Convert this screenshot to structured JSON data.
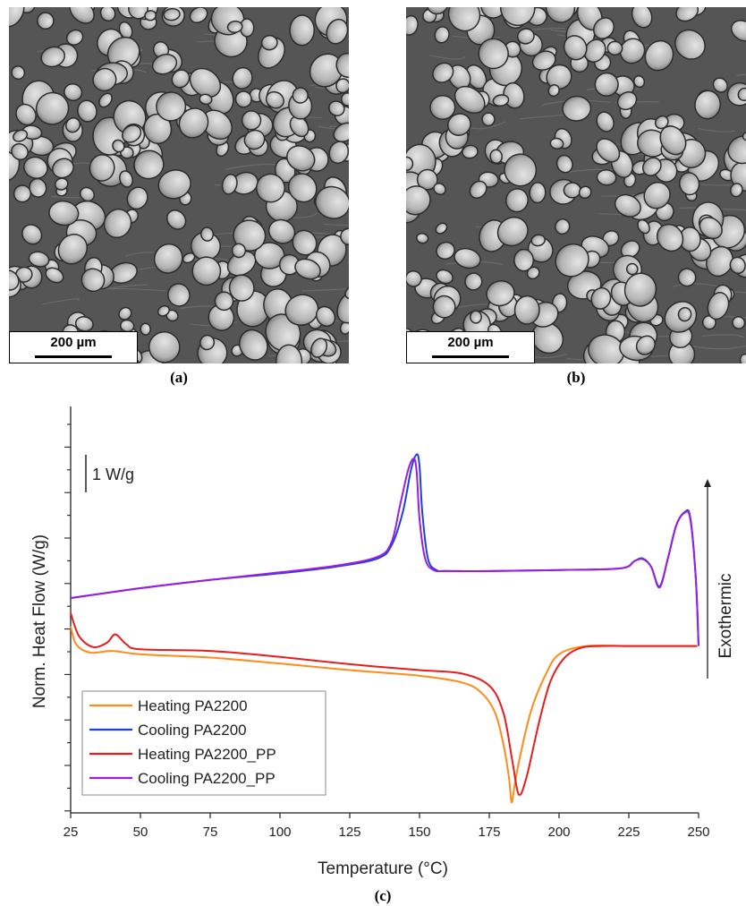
{
  "panels": {
    "a": {
      "label": "(a)",
      "scale_label": "200 µm"
    },
    "b": {
      "label": "(b)",
      "scale_label": "200 µm"
    },
    "c": {
      "label": "(c)"
    }
  },
  "chart_data": {
    "type": "line",
    "title": "",
    "xlabel": "Temperature (°C)",
    "ylabel": "Norm. Heat Flow (W/g)",
    "xlim": [
      25,
      250
    ],
    "xticks": [
      25,
      50,
      75,
      100,
      125,
      150,
      175,
      200,
      225,
      250
    ],
    "y_units": "W/g (relative, arbitrary offset)",
    "scale_annotation": "1 W/g",
    "direction_annotation": "Exothermic",
    "legend_position": "bottom-left",
    "grid": false,
    "series": [
      {
        "name": "Heating PA2200",
        "color": "#ff8c1a",
        "x": [
          25,
          27,
          32,
          40,
          50,
          75,
          100,
          125,
          150,
          165,
          172,
          177,
          180,
          182,
          183,
          184,
          186,
          190,
          195,
          200,
          210,
          225,
          245,
          249.5
        ],
        "y": [
          0.55,
          0.0,
          -0.25,
          -0.2,
          -0.3,
          -0.4,
          -0.58,
          -0.78,
          -0.95,
          -1.15,
          -1.45,
          -2.05,
          -3.0,
          -4.0,
          -4.78,
          -4.3,
          -3.4,
          -2.0,
          -0.95,
          -0.3,
          -0.05,
          -0.05,
          -0.05,
          -0.05
        ]
      },
      {
        "name": "Cooling PA2200",
        "color": "#1f3fe0",
        "x": [
          25,
          50,
          75,
          100,
          120,
          135,
          140,
          144,
          147,
          149,
          150,
          151,
          153,
          156,
          160,
          175,
          200,
          222,
          227,
          230,
          233,
          236,
          239,
          242,
          245,
          247,
          249,
          250
        ],
        "y": [
          1.4,
          1.7,
          1.95,
          2.15,
          2.35,
          2.6,
          3.0,
          4.0,
          5.3,
          5.75,
          5.4,
          4.0,
          2.6,
          2.25,
          2.22,
          2.22,
          2.25,
          2.3,
          2.52,
          2.6,
          2.35,
          1.75,
          2.6,
          3.6,
          4.0,
          3.85,
          2.0,
          -0.05
        ]
      },
      {
        "name": "Heating PA2200_PP",
        "color": "#e81c1c",
        "x": [
          25,
          28,
          33,
          38,
          41,
          45,
          50,
          75,
          100,
          125,
          150,
          165,
          175,
          180,
          183,
          185,
          186,
          187,
          189,
          193,
          197,
          202,
          208,
          215,
          225,
          245,
          249.5
        ],
        "y": [
          0.95,
          0.25,
          -0.08,
          0.05,
          0.3,
          0.0,
          -0.15,
          -0.2,
          -0.38,
          -0.6,
          -0.78,
          -0.88,
          -1.25,
          -2.05,
          -3.4,
          -4.4,
          -4.55,
          -4.4,
          -3.8,
          -2.3,
          -1.1,
          -0.4,
          -0.1,
          -0.05,
          -0.05,
          -0.05,
          -0.05
        ]
      },
      {
        "name": "Cooling PA2200_PP",
        "color": "#9a1ee0",
        "x": [
          25,
          50,
          75,
          100,
          120,
          135,
          140,
          143,
          146,
          148,
          149,
          150,
          152,
          155,
          160,
          175,
          200,
          222,
          227,
          230,
          233,
          236,
          239,
          242,
          245,
          247,
          249,
          250
        ],
        "y": [
          1.4,
          1.7,
          1.95,
          2.18,
          2.38,
          2.65,
          3.1,
          4.2,
          5.3,
          5.62,
          5.2,
          3.8,
          2.6,
          2.25,
          2.22,
          2.22,
          2.25,
          2.3,
          2.52,
          2.58,
          2.35,
          1.72,
          2.6,
          3.6,
          3.98,
          3.8,
          2.0,
          -0.05
        ]
      }
    ]
  }
}
